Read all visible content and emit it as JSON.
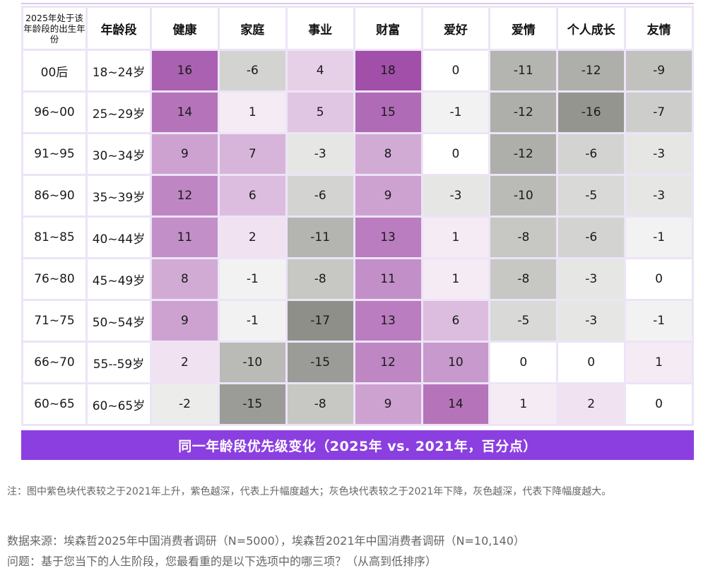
{
  "chart_data": {
    "type": "heatmap",
    "row_header_title": "2025年处于该年龄段的出生年份",
    "age_header_title": "年龄段",
    "columns": [
      "健康",
      "家庭",
      "事业",
      "财富",
      "爱好",
      "爱情",
      "个人成长",
      "友情"
    ],
    "rows": [
      {
        "birth": "00后",
        "age": "18~24岁",
        "values": [
          16,
          -6,
          4,
          18,
          0,
          -11,
          -12,
          -9
        ]
      },
      {
        "birth": "96~00",
        "age": "25~29岁",
        "values": [
          14,
          1,
          5,
          15,
          -1,
          -12,
          -16,
          -7
        ]
      },
      {
        "birth": "91~95",
        "age": "30~34岁",
        "values": [
          9,
          7,
          -3,
          8,
          0,
          -12,
          -6,
          -3
        ]
      },
      {
        "birth": "86~90",
        "age": "35~39岁",
        "values": [
          12,
          6,
          -6,
          9,
          -3,
          -10,
          -5,
          -3
        ]
      },
      {
        "birth": "81~85",
        "age": "40~44岁",
        "values": [
          11,
          2,
          -11,
          13,
          1,
          -8,
          -6,
          -1
        ]
      },
      {
        "birth": "76~80",
        "age": "45~49岁",
        "values": [
          8,
          -1,
          -8,
          11,
          1,
          -8,
          -3,
          0
        ]
      },
      {
        "birth": "71~75",
        "age": "50~54岁",
        "values": [
          9,
          -1,
          -17,
          13,
          6,
          -5,
          -3,
          -1
        ]
      },
      {
        "birth": "66~70",
        "age": "55--59岁",
        "values": [
          2,
          -10,
          -15,
          12,
          10,
          0,
          0,
          1
        ]
      },
      {
        "birth": "60~65",
        "age": "60~65岁",
        "values": [
          -2,
          -15,
          -8,
          9,
          14,
          1,
          2,
          0
        ]
      }
    ],
    "caption": "同一年龄段优先级变化（2025年 vs. 2021年，百分点）",
    "colors": {
      "positive": "#a14fa8",
      "negative": "#8f8f8a",
      "neutral": "#ffffff",
      "caption_bg": "#8b3fe0"
    }
  },
  "footer": {
    "note": "注：图中紫色块代表较之于2021年上升，紫色越深，代表上升幅度越大；灰色块代表较之于2021年下降，灰色越深，代表下降幅度越大。",
    "source": "数据来源：埃森哲2025年中国消费者调研（N=5000），埃森哲2021年中国消费者调研（N=10,140）",
    "question": "问题：基于您当下的人生阶段，您最看重的是以下选项中的哪三项？（从高到低排序）"
  }
}
